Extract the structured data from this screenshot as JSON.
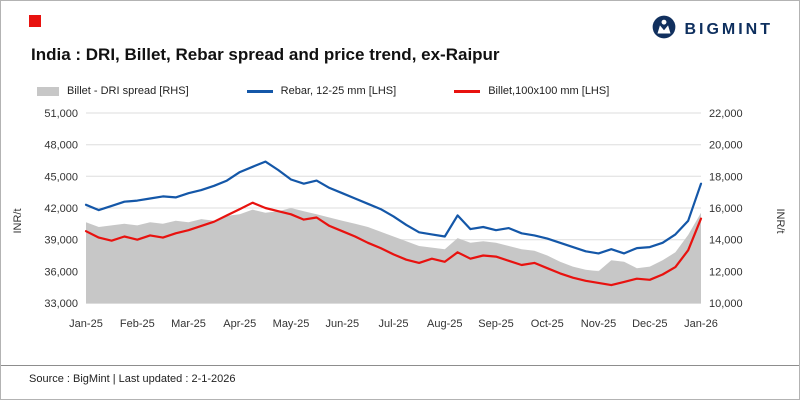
{
  "header": {
    "brand": "BIGMINT",
    "accent_red": "#e8120f",
    "brand_navy": "#0e2f5e"
  },
  "title": "India : DRI, Billet, Rebar spread and price trend, ex-Raipur",
  "legend": [
    {
      "label": "Billet - DRI spread  [RHS]",
      "type": "area",
      "color": "#c7c7c7"
    },
    {
      "label": "Rebar, 12-25 mm [LHS]",
      "type": "line",
      "color": "#1457a8"
    },
    {
      "label": "Billet,100x100 mm [LHS]",
      "type": "line",
      "color": "#e8120f"
    }
  ],
  "footer": {
    "source": "Source : BigMint | Last updated : 2-1-2026"
  },
  "chart_data": {
    "type": "line",
    "title": "India : DRI, Billet, Rebar spread and price trend, ex-Raipur",
    "x_tick_labels": [
      "Jan-25",
      "Feb-25",
      "Mar-25",
      "Apr-25",
      "May-25",
      "Jun-25",
      "Jul-25",
      "Aug-25",
      "Sep-25",
      "Oct-25",
      "Nov-25",
      "Dec-25",
      "Jan-26"
    ],
    "left_axis": {
      "label": "INR/t",
      "min": 33000,
      "max": 51000,
      "ticks": [
        33000,
        36000,
        39000,
        42000,
        45000,
        48000,
        51000
      ]
    },
    "right_axis": {
      "label": "INR/t",
      "min": 10000,
      "max": 22000,
      "ticks": [
        10000,
        12000,
        14000,
        16000,
        18000,
        20000,
        22000
      ]
    },
    "grid": "horizontal",
    "legend_position": "top",
    "series": [
      {
        "name": "Billet - DRI spread [RHS]",
        "axis": "right",
        "type": "area",
        "color": "#c7c7c7",
        "values": [
          15100,
          14800,
          14900,
          15000,
          14900,
          15100,
          15000,
          15200,
          15100,
          15300,
          15200,
          15500,
          15600,
          15900,
          15700,
          15800,
          16000,
          15800,
          15600,
          15400,
          15200,
          15000,
          14800,
          14500,
          14200,
          13900,
          13600,
          13500,
          13400,
          14100,
          13800,
          13900,
          13800,
          13600,
          13400,
          13300,
          13000,
          12600,
          12300,
          12100,
          12000,
          12700,
          12600,
          12200,
          12300,
          12700,
          13200,
          14300,
          15700
        ]
      },
      {
        "name": "Rebar, 12-25 mm [LHS]",
        "axis": "left",
        "type": "line",
        "color": "#1457a8",
        "values": [
          42300,
          41800,
          42200,
          42600,
          42700,
          42900,
          43100,
          43000,
          43400,
          43700,
          44100,
          44600,
          45400,
          45900,
          46400,
          45600,
          44700,
          44300,
          44600,
          43900,
          43400,
          42900,
          42400,
          41900,
          41200,
          40400,
          39700,
          39500,
          39300,
          41300,
          40000,
          40200,
          39900,
          40100,
          39600,
          39400,
          39100,
          38700,
          38300,
          37900,
          37700,
          38100,
          37700,
          38200,
          38300,
          38700,
          39500,
          40800,
          44300
        ]
      },
      {
        "name": "Billet,100x100 mm [LHS]",
        "axis": "left",
        "type": "line",
        "color": "#e8120f",
        "values": [
          39800,
          39200,
          38900,
          39300,
          39000,
          39400,
          39200,
          39600,
          39900,
          40300,
          40700,
          41300,
          41900,
          42500,
          42000,
          41700,
          41400,
          40900,
          41100,
          40300,
          39800,
          39300,
          38700,
          38200,
          37600,
          37100,
          36800,
          37200,
          36900,
          37800,
          37200,
          37500,
          37400,
          37000,
          36600,
          36800,
          36300,
          35800,
          35400,
          35100,
          34900,
          34700,
          35000,
          35300,
          35200,
          35700,
          36400,
          38000,
          41000
        ]
      }
    ]
  }
}
